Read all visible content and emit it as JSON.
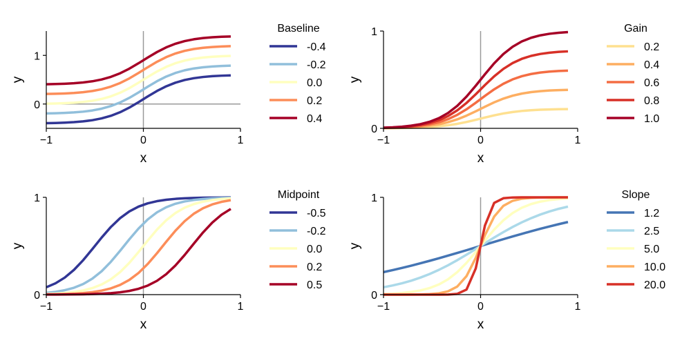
{
  "chart_data": [
    {
      "type": "line",
      "function": "logistic",
      "xlabel": "x",
      "ylabel": "y",
      "xlim": [
        -1,
        1
      ],
      "ylim": [
        -0.5,
        1.5
      ],
      "xticks": [
        "−1",
        "0",
        "1"
      ],
      "yticks": [
        "0",
        "1"
      ],
      "reference_lines": {
        "x0": true,
        "y0": true
      },
      "legend": {
        "title": "Baseline",
        "placement": "right"
      },
      "series": [
        {
          "name": "-0.4",
          "color": "#313695",
          "baseline": -0.4,
          "gain": 1,
          "midpoint": 0,
          "slope": 5
        },
        {
          "name": "-0.2",
          "color": "#91bfdb",
          "baseline": -0.2,
          "gain": 1,
          "midpoint": 0,
          "slope": 5
        },
        {
          "name": "0.0",
          "color": "#ffffbf",
          "baseline": 0.0,
          "gain": 1,
          "midpoint": 0,
          "slope": 5
        },
        {
          "name": "0.2",
          "color": "#fc8d59",
          "baseline": 0.2,
          "gain": 1,
          "midpoint": 0,
          "slope": 5
        },
        {
          "name": "0.4",
          "color": "#a50026",
          "baseline": 0.4,
          "gain": 1,
          "midpoint": 0,
          "slope": 5
        }
      ]
    },
    {
      "type": "line",
      "function": "logistic",
      "xlabel": "x",
      "ylabel": "y",
      "xlim": [
        -1,
        1
      ],
      "ylim": [
        0,
        1
      ],
      "xticks": [
        "−1",
        "0",
        "1"
      ],
      "yticks": [
        "0",
        "1"
      ],
      "reference_lines": {
        "x0": true,
        "y0": false
      },
      "legend": {
        "title": "Gain",
        "placement": "right"
      },
      "series": [
        {
          "name": "0.2",
          "color": "#fee090",
          "baseline": 0,
          "gain": 0.2,
          "midpoint": 0,
          "slope": 5
        },
        {
          "name": "0.4",
          "color": "#fdae61",
          "baseline": 0,
          "gain": 0.4,
          "midpoint": 0,
          "slope": 5
        },
        {
          "name": "0.6",
          "color": "#f46d43",
          "baseline": 0,
          "gain": 0.6,
          "midpoint": 0,
          "slope": 5
        },
        {
          "name": "0.8",
          "color": "#d73027",
          "baseline": 0,
          "gain": 0.8,
          "midpoint": 0,
          "slope": 5
        },
        {
          "name": "1.0",
          "color": "#a50026",
          "baseline": 0,
          "gain": 1.0,
          "midpoint": 0,
          "slope": 5
        }
      ]
    },
    {
      "type": "line",
      "function": "logistic",
      "xlabel": "x",
      "ylabel": "y",
      "xlim": [
        -1,
        1
      ],
      "ylim": [
        0,
        1
      ],
      "xticks": [
        "−1",
        "0",
        "1"
      ],
      "yticks": [
        "0",
        "1"
      ],
      "reference_lines": {
        "x0": true,
        "y0": false
      },
      "legend": {
        "title": "Midpoint",
        "placement": "right"
      },
      "series": [
        {
          "name": "-0.5",
          "color": "#313695",
          "baseline": 0,
          "gain": 1,
          "midpoint": -0.5,
          "slope": 5
        },
        {
          "name": "-0.2",
          "color": "#91bfdb",
          "baseline": 0,
          "gain": 1,
          "midpoint": -0.2,
          "slope": 5
        },
        {
          "name": "0.0",
          "color": "#ffffbf",
          "baseline": 0,
          "gain": 1,
          "midpoint": 0.0,
          "slope": 5
        },
        {
          "name": "0.2",
          "color": "#fc8d59",
          "baseline": 0,
          "gain": 1,
          "midpoint": 0.2,
          "slope": 5
        },
        {
          "name": "0.5",
          "color": "#a50026",
          "baseline": 0,
          "gain": 1,
          "midpoint": 0.5,
          "slope": 5
        }
      ]
    },
    {
      "type": "line",
      "function": "logistic",
      "xlabel": "x",
      "ylabel": "y",
      "xlim": [
        -1,
        1
      ],
      "ylim": [
        0,
        1
      ],
      "xticks": [
        "−1",
        "0",
        "1"
      ],
      "yticks": [
        "0",
        "1"
      ],
      "reference_lines": {
        "x0": true,
        "y0": false
      },
      "legend": {
        "title": "Slope",
        "placement": "right"
      },
      "series": [
        {
          "name": "1.2",
          "color": "#4575b4",
          "baseline": 0,
          "gain": 1,
          "midpoint": 0,
          "slope": 1.2
        },
        {
          "name": "2.5",
          "color": "#abd9e9",
          "baseline": 0,
          "gain": 1,
          "midpoint": 0,
          "slope": 2.5
        },
        {
          "name": "5.0",
          "color": "#ffffbf",
          "baseline": 0,
          "gain": 1,
          "midpoint": 0,
          "slope": 5.0
        },
        {
          "name": "10.0",
          "color": "#fdae61",
          "baseline": 0,
          "gain": 1,
          "midpoint": 0,
          "slope": 10.0
        },
        {
          "name": "20.0",
          "color": "#d73027",
          "baseline": 0,
          "gain": 1,
          "midpoint": 0,
          "slope": 20.0
        }
      ]
    }
  ]
}
